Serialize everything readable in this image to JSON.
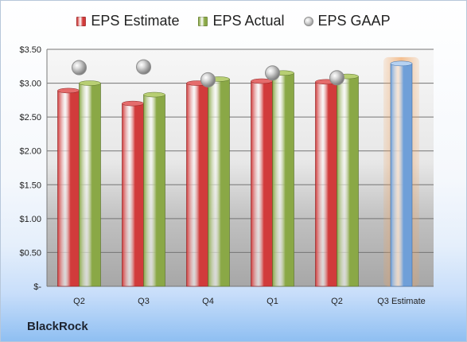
{
  "chart_data": {
    "type": "bar",
    "categories": [
      "Q2",
      "Q3",
      "Q4",
      "Q1",
      "Q2",
      "Q3 Estimate"
    ],
    "series": [
      {
        "name": "EPS Estimate",
        "color": "#d13b3b",
        "values": [
          2.89,
          2.7,
          3.0,
          3.03,
          3.02,
          null
        ]
      },
      {
        "name": "EPS Actual",
        "color": "#8aa846",
        "values": [
          3.0,
          2.83,
          3.06,
          3.15,
          3.1,
          null
        ]
      },
      {
        "name": "EPS GAAP",
        "color": "#a4a4a4",
        "values": [
          3.23,
          3.24,
          3.05,
          3.15,
          3.08,
          null
        ]
      }
    ],
    "estimate_bar": {
      "category": "Q3 Estimate",
      "value": 3.29,
      "color": "#6f9fd8",
      "glow_color": "#f2a25a"
    },
    "y_ticks": [
      "$-",
      "$0.50",
      "$1.00",
      "$1.50",
      "$2.00",
      "$2.50",
      "$3.00",
      "$3.50"
    ],
    "ylim": [
      0,
      3.5
    ],
    "grid": true,
    "legend_position": "top",
    "xlabel": "",
    "ylabel": "",
    "title": ""
  },
  "footer": {
    "brand": "BlackRock"
  }
}
